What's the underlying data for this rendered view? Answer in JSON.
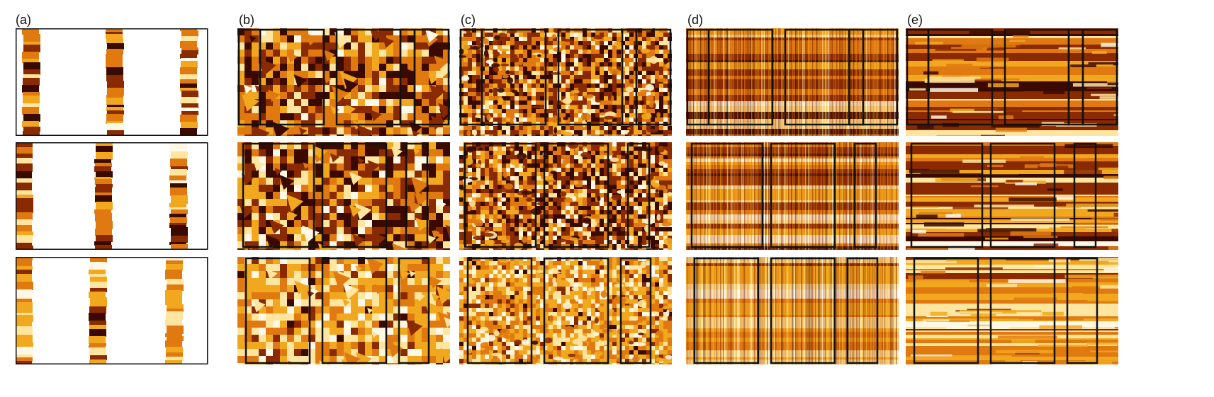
{
  "columns": [
    {
      "label": "(a)",
      "style": "partial"
    },
    {
      "label": "(b)",
      "style": "blocky"
    },
    {
      "label": "(c)",
      "style": "speckled"
    },
    {
      "label": "(d)",
      "style": "streaked"
    },
    {
      "label": "(e)",
      "style": "layered"
    }
  ],
  "rows": 3,
  "colors": {
    "dark": "#3a0a00",
    "brown": "#8a2a00",
    "orange": "#e07a10",
    "gold": "#f2a81e",
    "light": "#ffe6a0",
    "white": "#fff8e6",
    "frame": "#111111"
  }
}
